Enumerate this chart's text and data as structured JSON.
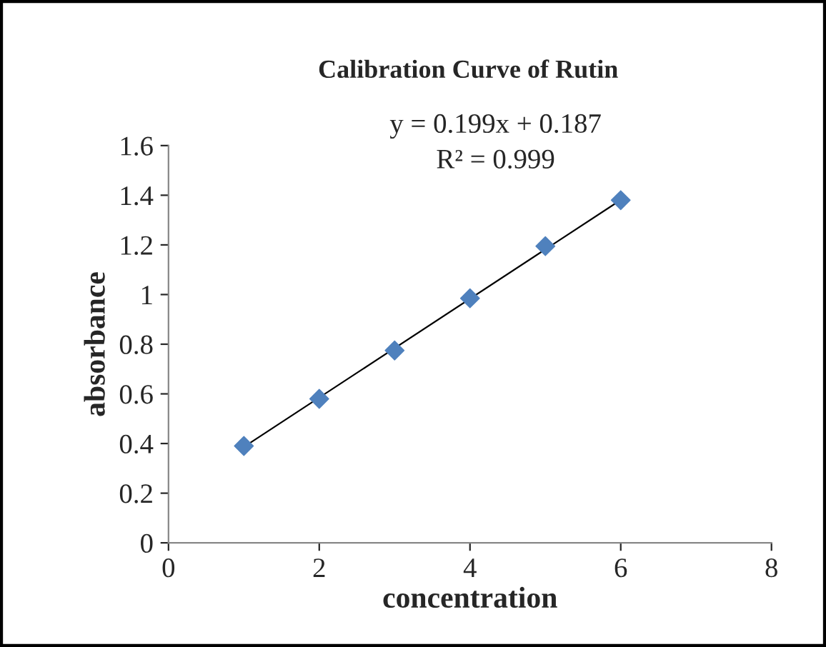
{
  "chart_data": {
    "type": "scatter",
    "title": "Calibration Curve of Rutin",
    "xlabel": "concentration",
    "ylabel": "absorbance",
    "annotations": [
      "y = 0.199x + 0.187",
      "R² = 0.999"
    ],
    "series": [
      {
        "color": "#4f81bd",
        "marker": "diamond",
        "x": [
          1,
          2,
          3,
          4,
          5,
          6
        ],
        "values": [
          0.39,
          0.58,
          0.775,
          0.985,
          1.195,
          1.38
        ]
      },
      {
        "type": "line",
        "color": "#000000",
        "marker": "none",
        "x": [
          1,
          6
        ],
        "values": [
          0.386,
          1.381
        ]
      }
    ],
    "xlim": [
      0,
      8
    ],
    "xticks": [
      0,
      2,
      4,
      6,
      8
    ],
    "ylim": [
      0,
      1.6
    ],
    "yticks": [
      0,
      0.2,
      0.4,
      0.6,
      0.8,
      1,
      1.2,
      1.4,
      1.6
    ],
    "grid": false,
    "legend": false
  }
}
